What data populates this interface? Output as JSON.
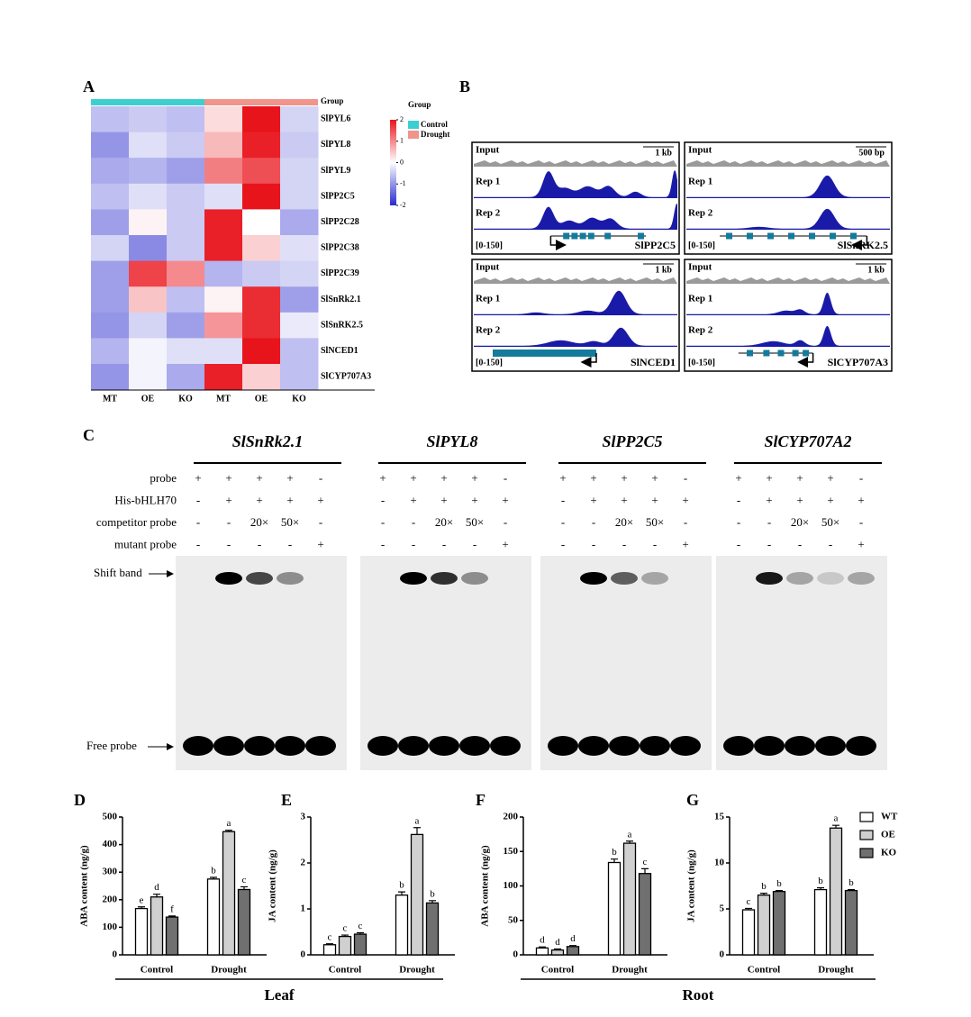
{
  "panel_labels": [
    "A",
    "B",
    "C",
    "D",
    "E",
    "F",
    "G"
  ],
  "heatmap": {
    "group_label": "Group",
    "legend_title": "Group",
    "groups": [
      {
        "name": "Control",
        "color": "#3dcfcf"
      },
      {
        "name": "Drought",
        "color": "#f0948c"
      }
    ],
    "column_groups": [
      0,
      0,
      0,
      1,
      1,
      1
    ],
    "columns": [
      "MT",
      "OE",
      "KO",
      "MT",
      "OE",
      "KO"
    ],
    "rows": [
      "SlPYL6",
      "SlPYL8",
      "SlPYL9",
      "SlPP2C5",
      "SlPP2C28",
      "SlPP2C38",
      "SlPP2C39",
      "SlSnRk2.1",
      "SlSnRK2.5",
      "SlNCED1",
      "SlCYP707A3"
    ],
    "values": [
      [
        -0.6,
        -0.5,
        -0.6,
        0.3,
        2.0,
        -0.4
      ],
      [
        -1.0,
        -0.3,
        -0.5,
        0.6,
        1.9,
        -0.5
      ],
      [
        -0.8,
        -0.7,
        -0.9,
        1.1,
        1.5,
        -0.4
      ],
      [
        -0.6,
        -0.3,
        -0.5,
        -0.3,
        2.0,
        -0.4
      ],
      [
        -0.9,
        0.1,
        -0.5,
        1.9,
        0.0,
        -0.8
      ],
      [
        -0.4,
        -1.1,
        -0.5,
        1.9,
        0.4,
        -0.3
      ],
      [
        -0.9,
        1.6,
        1.0,
        -0.7,
        -0.5,
        -0.4
      ],
      [
        -0.9,
        0.5,
        -0.6,
        0.1,
        1.8,
        -0.9
      ],
      [
        -1.0,
        -0.4,
        -0.9,
        0.9,
        1.8,
        -0.2
      ],
      [
        -0.7,
        -0.1,
        -0.3,
        -0.3,
        2.0,
        -0.6
      ],
      [
        -1.0,
        -0.1,
        -0.8,
        1.9,
        0.4,
        -0.6
      ]
    ],
    "scale_lim": [
      -2,
      2
    ],
    "scale_ticks": [
      2,
      1,
      0,
      -1,
      -2
    ]
  },
  "tracks": {
    "row_labels": [
      "Input",
      "Rep 1",
      "Rep 2"
    ],
    "range": "[0-150]",
    "panels": [
      {
        "scale": "1 kb",
        "gene": "SlPP2C5"
      },
      {
        "scale": "500 bp",
        "gene": "SlSnRK2.5"
      },
      {
        "scale": "1 kb",
        "gene": "SlNCED1"
      },
      {
        "scale": "1 kb",
        "gene": "SlCYP707A3"
      }
    ]
  },
  "emsa": {
    "genes": [
      "SlSnRk2.1",
      "SlPYL8",
      "SlPP2C5",
      "SlCYP707A2"
    ],
    "conditions": [
      {
        "name": "probe",
        "lanes": [
          "+",
          "+",
          "+",
          "+",
          "-"
        ]
      },
      {
        "name": "His-bHLH70",
        "lanes": [
          "-",
          "+",
          "+",
          "+",
          "+"
        ]
      },
      {
        "name": "competitor probe",
        "lanes": [
          "-",
          "-",
          "20×",
          "50×",
          "-"
        ]
      },
      {
        "name": "mutant probe",
        "lanes": [
          "-",
          "-",
          "-",
          "-",
          "+"
        ]
      }
    ],
    "shift_label": "Shift band",
    "free_label": "Free probe"
  },
  "chart_data": [
    {
      "type": "bar",
      "ylabel": "ABA content (ng/g)",
      "categories": [
        "Control",
        "Drought"
      ],
      "ylim": [
        0,
        500
      ],
      "yticks": [
        0,
        100,
        200,
        300,
        400,
        500
      ],
      "series": [
        {
          "name": "WT",
          "color": "#ffffff",
          "values": [
            168,
            275
          ],
          "errors": [
            6,
            6
          ],
          "letters": [
            "e",
            "b"
          ]
        },
        {
          "name": "OE",
          "color": "#d0d0d0",
          "values": [
            210,
            447
          ],
          "errors": [
            10,
            5
          ],
          "letters": [
            "d",
            "a"
          ]
        },
        {
          "name": "KO",
          "color": "#707070",
          "values": [
            137,
            237
          ],
          "errors": [
            4,
            10
          ],
          "letters": [
            "f",
            "c"
          ]
        }
      ]
    },
    {
      "type": "bar",
      "ylabel": "JA content (ng/g)",
      "categories": [
        "Control",
        "Drought"
      ],
      "ylim": [
        0,
        3
      ],
      "yticks": [
        0,
        1,
        2,
        3
      ],
      "series": [
        {
          "name": "WT",
          "color": "#ffffff",
          "values": [
            0.22,
            1.3
          ],
          "errors": [
            0.02,
            0.07
          ],
          "letters": [
            "c",
            "b"
          ]
        },
        {
          "name": "OE",
          "color": "#d0d0d0",
          "values": [
            0.4,
            2.62
          ],
          "errors": [
            0.03,
            0.15
          ],
          "letters": [
            "c",
            "a"
          ]
        },
        {
          "name": "KO",
          "color": "#707070",
          "values": [
            0.45,
            1.13
          ],
          "errors": [
            0.03,
            0.05
          ],
          "letters": [
            "c",
            "b"
          ]
        }
      ]
    },
    {
      "type": "bar",
      "ylabel": "ABA content (ng/g)",
      "categories": [
        "Control",
        "Drought"
      ],
      "ylim": [
        0,
        200
      ],
      "yticks": [
        0,
        50,
        100,
        150,
        200
      ],
      "series": [
        {
          "name": "WT",
          "color": "#ffffff",
          "values": [
            10,
            134
          ],
          "errors": [
            1.5,
            5
          ],
          "letters": [
            "d",
            "b"
          ]
        },
        {
          "name": "OE",
          "color": "#d0d0d0",
          "values": [
            7,
            162
          ],
          "errors": [
            1.5,
            3
          ],
          "letters": [
            "d",
            "a"
          ]
        },
        {
          "name": "KO",
          "color": "#707070",
          "values": [
            12,
            118
          ],
          "errors": [
            1.5,
            7
          ],
          "letters": [
            "d",
            "c"
          ]
        }
      ]
    },
    {
      "type": "bar",
      "ylabel": "JA content (ng/g)",
      "categories": [
        "Control",
        "Drought"
      ],
      "ylim": [
        0,
        15
      ],
      "yticks": [
        0,
        5,
        10,
        15
      ],
      "legend": "top-right",
      "series": [
        {
          "name": "WT",
          "color": "#ffffff",
          "values": [
            4.9,
            7.1
          ],
          "errors": [
            0.15,
            0.2
          ],
          "letters": [
            "c",
            "b"
          ]
        },
        {
          "name": "OE",
          "color": "#d0d0d0",
          "values": [
            6.5,
            13.8
          ],
          "errors": [
            0.2,
            0.3
          ],
          "letters": [
            "b",
            "a"
          ]
        },
        {
          "name": "KO",
          "color": "#707070",
          "values": [
            6.9,
            7.0
          ],
          "errors": [
            0.1,
            0.1
          ],
          "letters": [
            "b",
            "b"
          ]
        }
      ]
    }
  ],
  "tissues": [
    "Leaf",
    "Root"
  ]
}
